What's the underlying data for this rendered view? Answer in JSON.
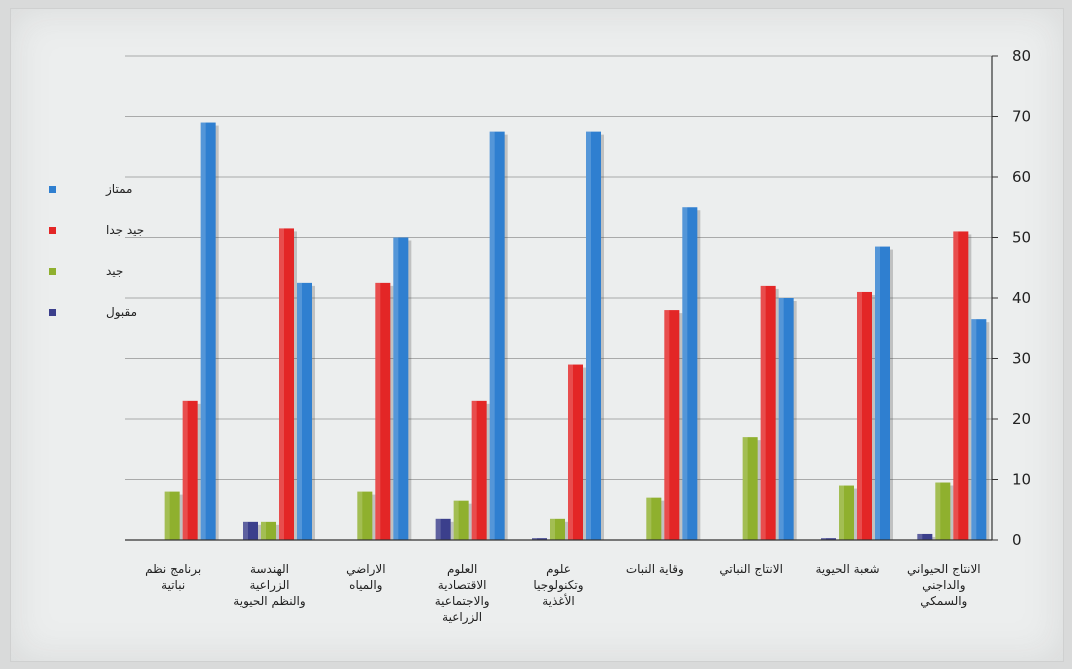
{
  "chart_data": {
    "type": "bar",
    "ylim": [
      0,
      80
    ],
    "yticks": [
      "0",
      "10",
      "20",
      "30",
      "40",
      "50",
      "60",
      "70",
      "80"
    ],
    "grid": true,
    "legend_position": "left",
    "categories": [
      [
        "الانتاج الحيواني",
        "والداجني",
        "والسمكي"
      ],
      [
        "شعبة الحيوية"
      ],
      [
        "الانتاج النباتي"
      ],
      [
        "وقاية النبات"
      ],
      [
        "علوم",
        "وتكنولوجيا",
        "الأغذية"
      ],
      [
        "العلوم",
        "الاقتصادية",
        "والاجتماعية",
        "الزراعية"
      ],
      [
        "الاراضي",
        "والمياه"
      ],
      [
        "الهندسة",
        "الزراعية",
        "والنظم الحيوية"
      ],
      [
        "برنامج نظم",
        "نباتية"
      ]
    ],
    "series": [
      {
        "name": "مقبول",
        "color": "#3b3f8c",
        "values": [
          1,
          0.3,
          0,
          0,
          0.3,
          3.5,
          0,
          3,
          0
        ]
      },
      {
        "name": "جيد",
        "color": "#8fb02e",
        "values": [
          9.5,
          9,
          17,
          7,
          3.5,
          6.5,
          8,
          3,
          8
        ]
      },
      {
        "name": "جيد جدا",
        "color": "#e32626",
        "values": [
          51,
          41,
          42,
          38,
          29,
          23,
          42.5,
          51.5,
          23
        ]
      },
      {
        "name": "ممتاز",
        "color": "#2f7fd0",
        "values": [
          36.5,
          48.5,
          40,
          55,
          67.5,
          67.5,
          50,
          42.5,
          69
        ]
      }
    ]
  }
}
